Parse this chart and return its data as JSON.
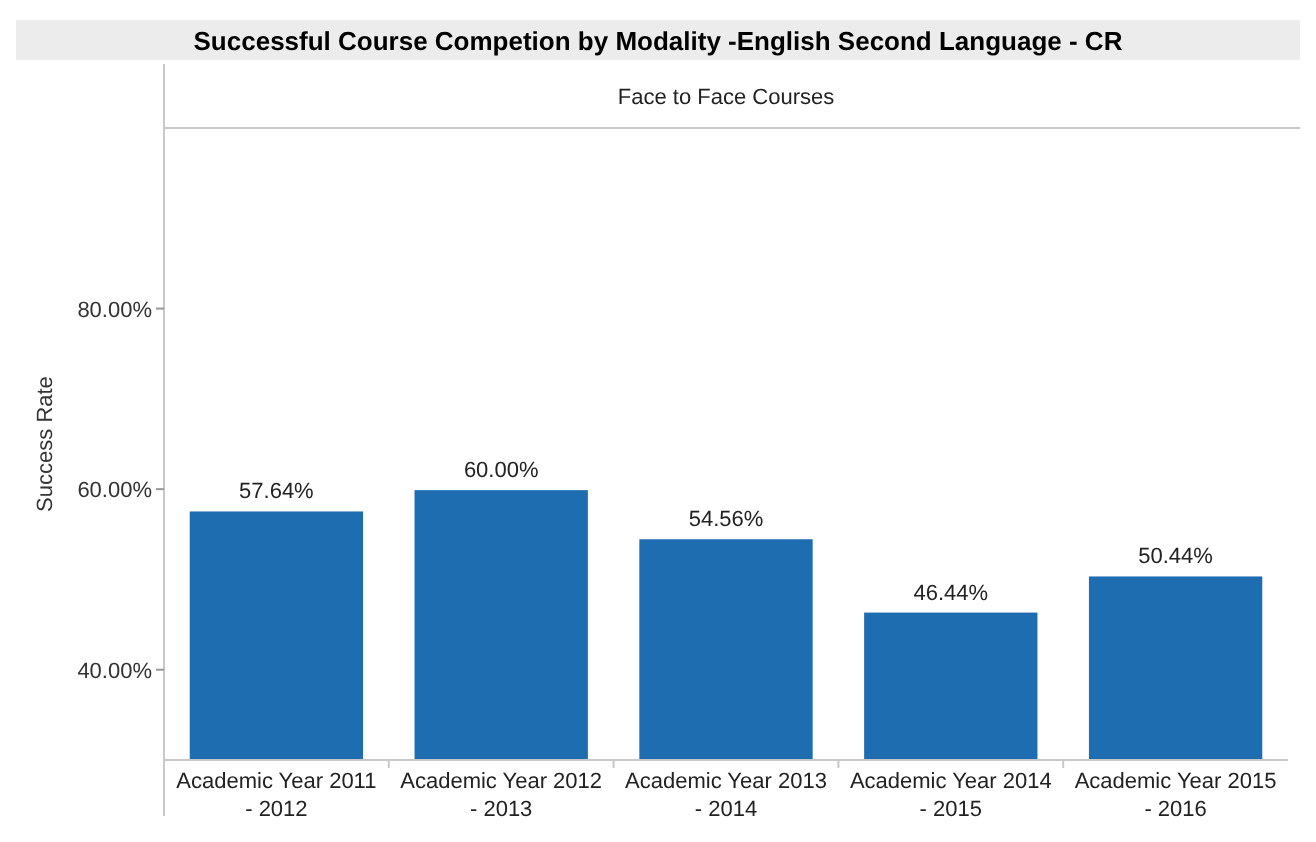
{
  "chart_data": {
    "type": "bar",
    "title": "Successful Course Competion by Modality -English Second Language - CR",
    "subtitle": "Face to Face Courses",
    "ylabel": "Success Rate",
    "categories": [
      "Academic Year 2011 - 2012",
      "Academic Year 2012 - 2013",
      "Academic Year 2013 - 2014",
      "Academic Year 2014 - 2015",
      "Academic Year 2015 - 2016"
    ],
    "values": [
      57.64,
      60.0,
      54.56,
      46.44,
      50.44
    ],
    "value_labels": [
      "57.64%",
      "60.00%",
      "54.56%",
      "46.44%",
      "50.44%"
    ],
    "color": "#1f6db1",
    "ylim": [
      30,
      100
    ],
    "yticks": [
      {
        "value": 40,
        "label": "40.00%"
      },
      {
        "value": 60,
        "label": "60.00%"
      },
      {
        "value": 80,
        "label": "80.00%"
      }
    ],
    "grid": false
  }
}
